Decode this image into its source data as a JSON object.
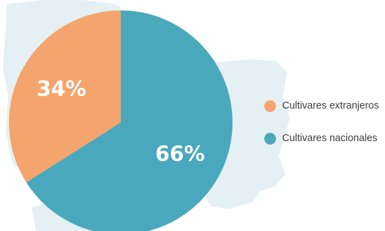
{
  "colors": {
    "background_map": "#e4f0f3",
    "extranjeros": "#f4a56d",
    "nacionales": "#4aa8bd"
  },
  "chart_data": {
    "type": "pie",
    "title": "",
    "slices": [
      {
        "label": "Cultivares extranjeros",
        "value": 34,
        "display": "34%",
        "color": "#f4a56d"
      },
      {
        "label": "Cultivares nacionales",
        "value": 66,
        "display": "66%",
        "color": "#4aa8bd"
      }
    ],
    "legend_placement": "right"
  },
  "legend": {
    "items": [
      {
        "label": "Cultivares extranjeros",
        "color": "#f4a56d"
      },
      {
        "label": "Cultivares nacionales",
        "color": "#4aa8bd"
      }
    ]
  }
}
